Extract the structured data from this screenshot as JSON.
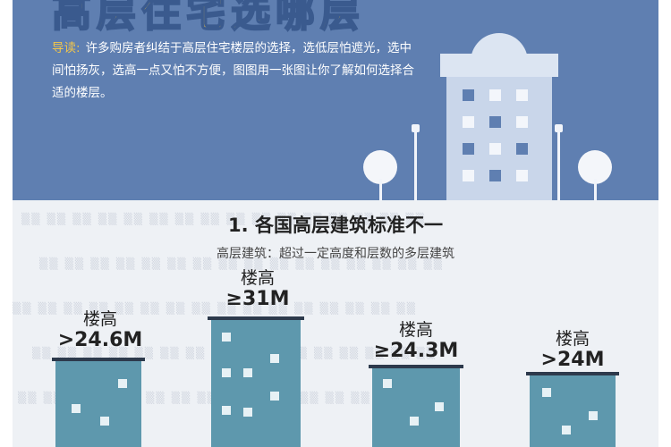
{
  "banner": {
    "title": "高层住宅选哪层",
    "intro_tag": "导读:",
    "intro_text": "许多购房者纠结于高层住宅楼层的选择，选低层怕遮光，选中间怕扬灰，选高一点又怕不方便，图图用一张图让你了解如何选择合适的楼层。"
  },
  "section": {
    "title": "1. 各国高层建筑标准不一",
    "subtitle": "高层建筑：超过一定高度和层数的多层建筑"
  },
  "buildings": [
    {
      "label_top": "楼高",
      "label_value": ">24.6M"
    },
    {
      "label_top": "楼高",
      "label_value": "≥31M"
    },
    {
      "label_top": "楼高",
      "label_value": "≥24.3M"
    },
    {
      "label_top": "楼高",
      "label_value": ">24M"
    }
  ],
  "colors": {
    "banner_bg": "#5f7fb1",
    "title_yellow": "#f5c842",
    "building_teal": "#5e98ad",
    "cap_dark": "#2d3a4c"
  }
}
